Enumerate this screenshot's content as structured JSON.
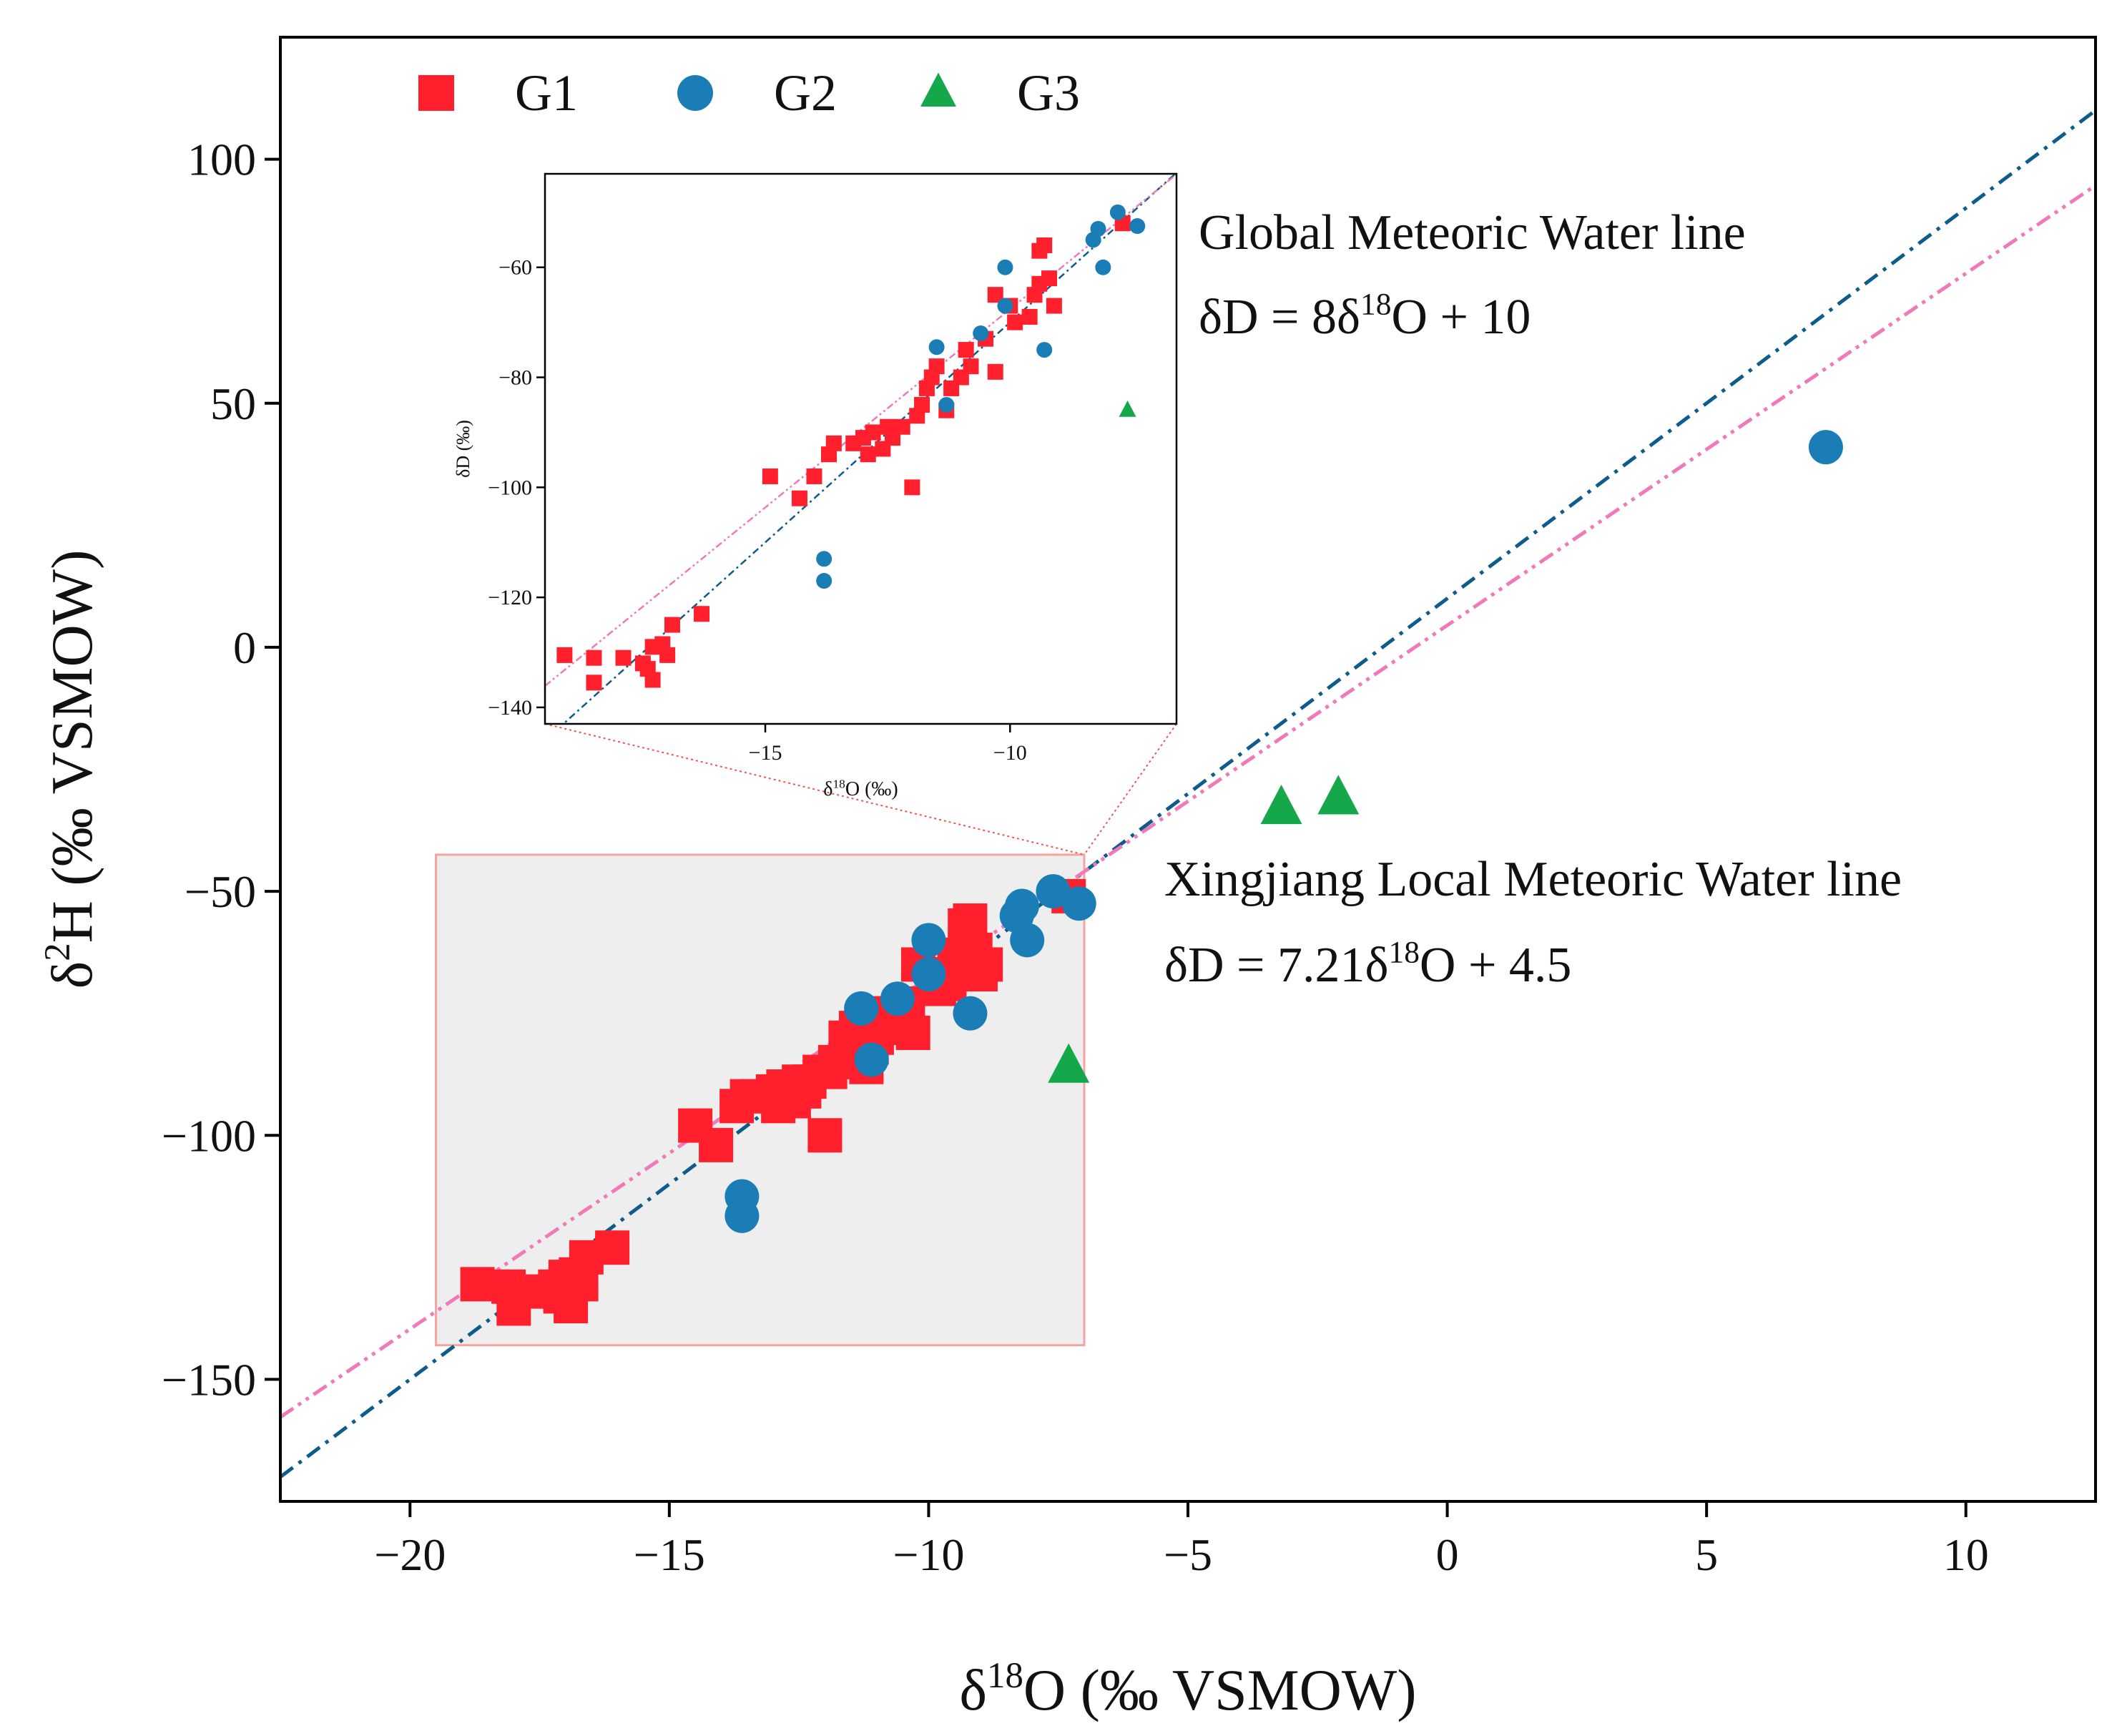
{
  "colors": {
    "g1": "#FF1F2D",
    "g2": "#1B7DB6",
    "g3": "#15A84A",
    "gmwl": "#0E5C8C",
    "lmwl": "#F07AB8",
    "gmwl_text": "#1E7DB8",
    "lmwl_text": "#F07AB8",
    "zoom_fill": "#EEEEEE",
    "zoom_edge": "#F4A49E",
    "connector": "#F05550"
  },
  "chart_data": [
    {
      "type": "scatter",
      "name": "main",
      "xlabel": "δ18O (‰ VSMOW)",
      "ylabel": "δ2H (‰ VSMOW)",
      "xlabel_parts": {
        "pre": "δ",
        "sup": "18",
        "post": "O (‰ VSMOW)"
      },
      "ylabel_parts": {
        "pre": "δ",
        "sup": "2",
        "post": "H (‰ VSMOW)"
      },
      "xlim": [
        -22.5,
        12.5
      ],
      "ylim": [
        -175,
        125
      ],
      "xticks": [
        -20,
        -15,
        -10,
        -5,
        0,
        5,
        10
      ],
      "yticks": [
        -150,
        -100,
        -50,
        0,
        50,
        100
      ],
      "xtick_labels": [
        "−20",
        "−15",
        "−10",
        "−5",
        "0",
        "5",
        "10"
      ],
      "ytick_labels": [
        "−150",
        "−100",
        "−50",
        "0",
        "50",
        "100"
      ],
      "legend": {
        "placement": "top-left",
        "entries": [
          "G1",
          "G2",
          "G3"
        ]
      },
      "zoom_region": {
        "x": [
          -19.5,
          -7.0
        ],
        "y": [
          -143,
          -42.5
        ]
      },
      "lines": [
        {
          "name": "Global Meteoric Water line",
          "slope": 8,
          "intercept": 10,
          "style": "dash-dot",
          "label": "Global Meteoric Water line",
          "equation_parts": {
            "pre": "δD = 8δ",
            "sup": "18",
            "post": "O + 10"
          }
        },
        {
          "name": "Xingjiang Local Meteoric Water line",
          "slope": 7.21,
          "intercept": 4.5,
          "style": "dash-dot-dot",
          "label": "Xingjiang Local Meteoric Water line",
          "equation_parts": {
            "pre": "δD = 7.21δ",
            "sup": "18",
            "post": "O + 4.5"
          }
        }
      ],
      "series": [
        {
          "name": "G1",
          "marker": "square",
          "points": [
            [
              -18.7,
              -130.5
            ],
            [
              -18.1,
              -131
            ],
            [
              -18.0,
              -135.5
            ],
            [
              -17.6,
              -132
            ],
            [
              -17.2,
              -131
            ],
            [
              -17.1,
              -133
            ],
            [
              -17.0,
              -129
            ],
            [
              -16.9,
              -135
            ],
            [
              -16.8,
              -128.5
            ],
            [
              -16.7,
              -130.5
            ],
            [
              -16.6,
              -125
            ],
            [
              -16.1,
              -123
            ],
            [
              -14.5,
              -98
            ],
            [
              -14.1,
              -102
            ],
            [
              -13.7,
              -94
            ],
            [
              -13.5,
              -92
            ],
            [
              -13.3,
              -92
            ],
            [
              -13.0,
              -91
            ],
            [
              -12.9,
              -94
            ],
            [
              -12.8,
              -90
            ],
            [
              -12.6,
              -93
            ],
            [
              -12.5,
              -89
            ],
            [
              -12.4,
              -91
            ],
            [
              -12.3,
              -89
            ],
            [
              -12.1,
              -87
            ],
            [
              -11.9,
              -87
            ],
            [
              -12.0,
              -100
            ],
            [
              -11.8,
              -85
            ],
            [
              -11.6,
              -80
            ],
            [
              -11.5,
              -82
            ],
            [
              -11.4,
              -78
            ],
            [
              -11.2,
              -86
            ],
            [
              -11.1,
              -82
            ],
            [
              -11.0,
              -80
            ],
            [
              -10.9,
              -75
            ],
            [
              -10.7,
              -78
            ],
            [
              -10.4,
              -73
            ],
            [
              -10.3,
              -79
            ],
            [
              -10.2,
              -65
            ],
            [
              -9.9,
              -67
            ],
            [
              -9.8,
              -70
            ],
            [
              -9.6,
              -69
            ],
            [
              -9.5,
              -65
            ],
            [
              -9.4,
              -63
            ],
            [
              -9.3,
              -57
            ],
            [
              -9.2,
              -56
            ],
            [
              -9.1,
              -62
            ],
            [
              -9.0,
              -67
            ],
            [
              -8.9,
              -65
            ],
            [
              -7.3,
              -51
            ]
          ]
        },
        {
          "name": "G2",
          "marker": "circle",
          "points": [
            [
              -13.6,
              -112.5
            ],
            [
              -13.6,
              -116.5
            ],
            [
              -11.3,
              -74
            ],
            [
              -11.1,
              -84.5
            ],
            [
              -10.6,
              -72
            ],
            [
              -10.0,
              -60
            ],
            [
              -10.0,
              -67
            ],
            [
              -9.2,
              -75
            ],
            [
              -8.3,
              -55
            ],
            [
              -8.2,
              -53
            ],
            [
              -8.1,
              -60
            ],
            [
              -7.6,
              -50
            ],
            [
              -7.1,
              -52.5
            ],
            [
              7.3,
              41
            ]
          ]
        },
        {
          "name": "G3",
          "marker": "triangle",
          "points": [
            [
              -3.2,
              -33
            ],
            [
              -2.1,
              -31
            ],
            [
              -7.3,
              -86
            ]
          ]
        }
      ]
    },
    {
      "type": "scatter",
      "name": "inset",
      "xlabel": "δ18O (‰)",
      "ylabel": "δD (‰)",
      "xlabel_parts": {
        "pre": "δ",
        "sup": "18",
        "post": "O (‰)"
      },
      "ylabel_parts": {
        "pre": "δD (‰)",
        "sup": "",
        "post": ""
      },
      "xlim": [
        -19.5,
        -6.6
      ],
      "ylim": [
        -143,
        -43
      ],
      "xticks": [
        -15,
        -10
      ],
      "yticks": [
        -140,
        -120,
        -100,
        -80,
        -60
      ],
      "xtick_labels": [
        "−15",
        "−10"
      ],
      "ytick_labels": [
        "−140",
        "−120",
        "−100",
        "−80",
        "−60"
      ],
      "lines": [
        {
          "name": "GMWL",
          "slope": 8,
          "intercept": 10,
          "style": "dash-dot"
        },
        {
          "name": "LMWL",
          "slope": 7.21,
          "intercept": 4.5,
          "style": "dash-dot-dot"
        }
      ],
      "series": [
        {
          "name": "G1",
          "marker": "square",
          "points": [
            [
              -19.1,
              -130.5
            ],
            [
              -18.5,
              -131
            ],
            [
              -18.5,
              -135.5
            ],
            [
              -17.9,
              -131
            ],
            [
              -17.5,
              -132
            ],
            [
              -17.4,
              -133
            ],
            [
              -17.3,
              -129
            ],
            [
              -17.3,
              -135
            ],
            [
              -17.1,
              -128.5
            ],
            [
              -17.0,
              -130.5
            ],
            [
              -16.9,
              -125
            ],
            [
              -16.3,
              -123
            ],
            [
              -14.9,
              -98
            ],
            [
              -14.3,
              -102
            ],
            [
              -14.0,
              -98
            ],
            [
              -13.7,
              -94
            ],
            [
              -13.6,
              -92
            ],
            [
              -13.2,
              -92
            ],
            [
              -13.0,
              -91
            ],
            [
              -12.9,
              -94
            ],
            [
              -12.8,
              -90
            ],
            [
              -12.6,
              -93
            ],
            [
              -12.5,
              -89
            ],
            [
              -12.4,
              -91
            ],
            [
              -12.2,
              -89
            ],
            [
              -12.0,
              -100
            ],
            [
              -11.9,
              -87
            ],
            [
              -11.8,
              -85
            ],
            [
              -11.7,
              -82
            ],
            [
              -11.6,
              -80
            ],
            [
              -11.5,
              -78
            ],
            [
              -11.3,
              -86
            ],
            [
              -11.2,
              -82
            ],
            [
              -11.0,
              -80
            ],
            [
              -10.9,
              -75
            ],
            [
              -10.8,
              -78
            ],
            [
              -10.5,
              -73
            ],
            [
              -10.3,
              -79
            ],
            [
              -10.3,
              -65
            ],
            [
              -10.0,
              -67
            ],
            [
              -9.9,
              -70
            ],
            [
              -9.6,
              -69
            ],
            [
              -9.5,
              -65
            ],
            [
              -9.4,
              -63
            ],
            [
              -9.4,
              -57
            ],
            [
              -9.3,
              -56
            ],
            [
              -9.2,
              -62
            ],
            [
              -9.1,
              -67
            ],
            [
              -7.7,
              -52
            ]
          ]
        },
        {
          "name": "G2",
          "marker": "circle",
          "points": [
            [
              -13.8,
              -113
            ],
            [
              -13.8,
              -117
            ],
            [
              -11.5,
              -74.5
            ],
            [
              -11.3,
              -85
            ],
            [
              -10.6,
              -72
            ],
            [
              -10.1,
              -60
            ],
            [
              -10.1,
              -67
            ],
            [
              -9.3,
              -75
            ],
            [
              -8.3,
              -55
            ],
            [
              -8.2,
              -53
            ],
            [
              -8.1,
              -60
            ],
            [
              -7.8,
              -50
            ],
            [
              -7.4,
              -52.5
            ]
          ]
        },
        {
          "name": "G3",
          "marker": "triangle",
          "points": [
            [
              -7.6,
              -86
            ]
          ]
        }
      ]
    }
  ]
}
